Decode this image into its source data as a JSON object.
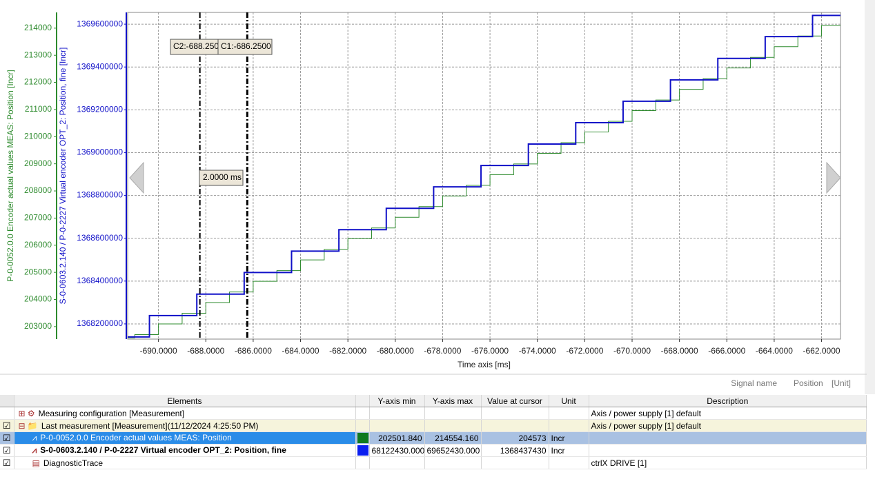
{
  "chart_data": {
    "type": "step",
    "xlabel": "Time axis [ms]",
    "ylabel": "P-0-0052.0.0 Encoder actual values MEAS: Position [Incr]",
    "y2label": "S-0-0603.2.140 / P-0-2227 Virtual encoder OPT_2: Position, fine [Incr]",
    "xlim": [
      -691.3,
      -661.2
    ],
    "xticks": [
      {
        "value": -690,
        "label": "-690.0000"
      },
      {
        "value": -688,
        "label": "-688.0000"
      },
      {
        "value": -686,
        "label": "-686.0000"
      },
      {
        "value": -684,
        "label": "-684.0000"
      },
      {
        "value": -682,
        "label": "-682.0000"
      },
      {
        "value": -680,
        "label": "-680.0000"
      },
      {
        "value": -678,
        "label": "-678.0000"
      },
      {
        "value": -676,
        "label": "-676.0000"
      },
      {
        "value": -674,
        "label": "-674.0000"
      },
      {
        "value": -672,
        "label": "-672.0000"
      },
      {
        "value": -670,
        "label": "-670.0000"
      },
      {
        "value": -668,
        "label": "-668.0000"
      },
      {
        "value": -666,
        "label": "-666.0000"
      },
      {
        "value": -664,
        "label": "-664.0000"
      },
      {
        "value": -662,
        "label": "-662.0000"
      }
    ],
    "ylim": [
      202540,
      214580
    ],
    "yticks": [
      203000,
      204000,
      205000,
      206000,
      207000,
      208000,
      209000,
      210000,
      211000,
      212000,
      213000,
      214000
    ],
    "y2lim": [
      1368129000,
      1369655000
    ],
    "y2ticks": [
      1368200000,
      1368400000,
      1368600000,
      1368800000,
      1369000000,
      1369200000,
      1369400000,
      1369600000
    ],
    "grid": true,
    "series": [
      {
        "color": "#2e8b2e",
        "axis": "y",
        "x": [
          -691.3,
          -691,
          -690,
          -689,
          -688,
          -687,
          -686,
          -685,
          -684,
          -683,
          -682,
          -681,
          -680,
          -679,
          -678,
          -677,
          -676,
          -675,
          -674,
          -673,
          -672,
          -671,
          -670,
          -669,
          -668,
          -667,
          -666,
          -665,
          -664,
          -663,
          -662
        ],
        "values": [
          202588,
          202706,
          203099,
          203492,
          203885,
          204278,
          204671,
          205064,
          205457,
          205850,
          206243,
          206636,
          207029,
          207422,
          207815,
          208208,
          208601,
          208994,
          209387,
          209780,
          210173,
          210566,
          210959,
          211352,
          211745,
          212138,
          212531,
          212924,
          213317,
          213710,
          214103
        ]
      },
      {
        "color": "#1010c8",
        "axis": "y2",
        "x": [
          -691.3,
          -690.38,
          -688.38,
          -686.38,
          -684.38,
          -682.38,
          -680.38,
          -678.38,
          -676.38,
          -674.38,
          -672.38,
          -670.38,
          -668.38,
          -666.38,
          -664.38,
          -662.38
        ],
        "values": [
          1368139000,
          1368239000,
          1368339000,
          1368440000,
          1368540000,
          1368640000,
          1368740000,
          1368840000,
          1368940000,
          1369040000,
          1369140000,
          1369240000,
          1369340000,
          1369440000,
          1369542000,
          1369641000
        ]
      }
    ],
    "cursors": [
      {
        "label": "C2:-688.250",
        "value": -688.25
      },
      {
        "label": "C1:-686.2500",
        "value": -686.25
      }
    ],
    "cursor_delta": "2.0000 ms"
  },
  "footer": {
    "signal": "Signal name",
    "position": "Position",
    "unit": "[Unit]"
  },
  "table": {
    "headers": [
      "Elements",
      "Y-axis min",
      "Y-axis max",
      "Value at cursor",
      "Unit",
      "Description"
    ],
    "rows": [
      {
        "element": "Measuring configuration [Measurement]",
        "description": "Axis / power supply [1] default"
      },
      {
        "element": "Last measurement [Measurement](11/12/2024 4:25:50 PM)",
        "description": "Axis / power supply [1] default"
      },
      {
        "element": "P-0-0052.0.0 Encoder actual values MEAS: Position",
        "color": "#0f7a1e",
        "ymin": "202501.840",
        "ymax": "214554.160",
        "cursor": "204573",
        "unit": "Incr"
      },
      {
        "element": "S-0-0603.2.140 / P-0-2227 Virtual encoder OPT_2: Position, fine",
        "color": "#0a1ef0",
        "ymin": "68122430.000",
        "ymax": "69652430.000",
        "cursor": "1368437430",
        "unit": "Incr"
      },
      {
        "element": "DiagnosticTrace",
        "description": "ctrlX DRIVE [1]"
      }
    ]
  }
}
